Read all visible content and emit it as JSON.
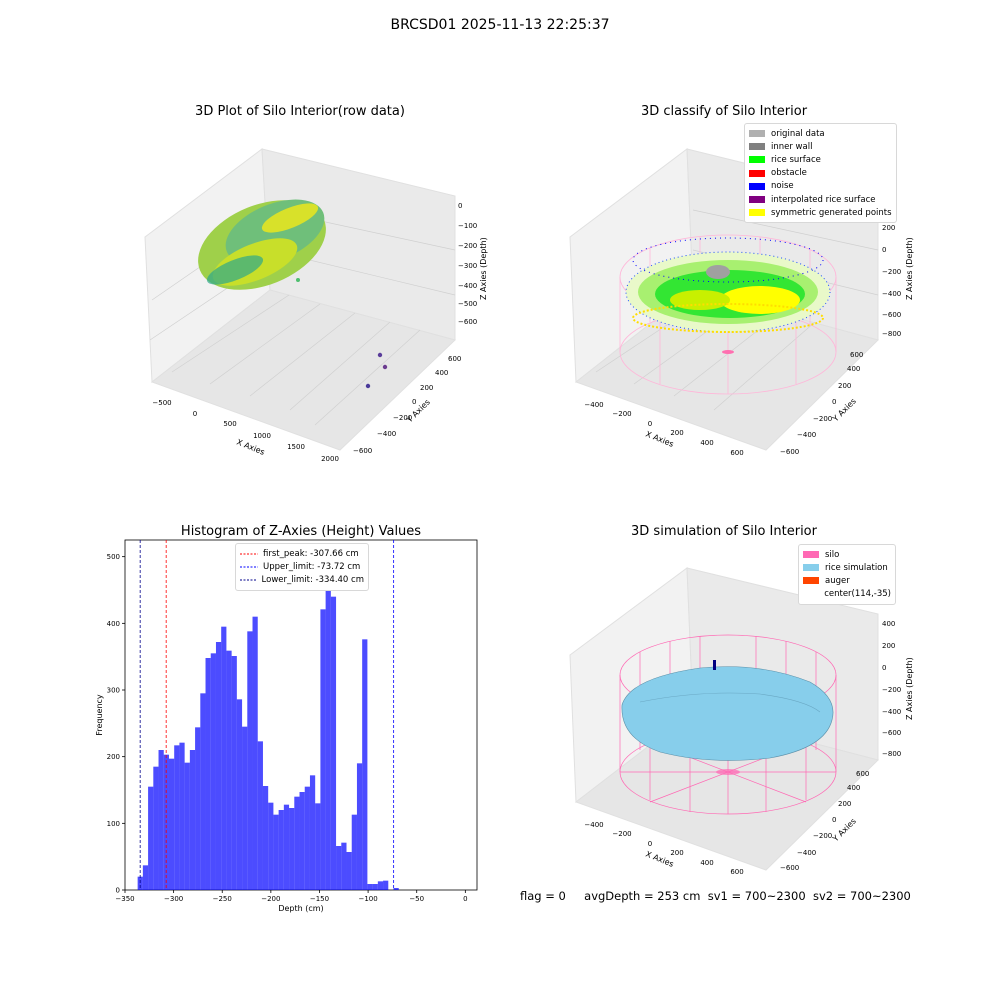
{
  "figure": {
    "suptitle": "BRCSD01 2025-11-13 22:25:37",
    "footer": {
      "flag": "flag = 0",
      "avg_depth": "avgDepth = 253 cm",
      "sv1": "sv1 = 700~2300",
      "sv2": "sv2 = 700~2300"
    }
  },
  "panels": {
    "raw": {
      "title": "3D Plot of Silo Interior(row data)",
      "xlabel": "X Axies",
      "ylabel": "Y Axies",
      "zlabel": "Z Axies (Depth)",
      "xticks": [
        "−500",
        "0",
        "500",
        "1000",
        "1500",
        "2000"
      ],
      "yticks": [
        "−600",
        "−400",
        "−200",
        "0",
        "200",
        "400",
        "600"
      ],
      "zticks": [
        "0",
        "−100",
        "−200",
        "−300",
        "−400",
        "−500",
        "−600"
      ]
    },
    "classify": {
      "title": "3D classify of Silo Interior",
      "xlabel": "X Axies",
      "ylabel": "Y Axies",
      "zlabel": "Z Axies (Depth)",
      "xticks": [
        "−400",
        "−200",
        "0",
        "200",
        "400",
        "600"
      ],
      "yticks": [
        "−600",
        "−400",
        "−200",
        "0",
        "200",
        "400",
        "600"
      ],
      "zticks": [
        "200",
        "0",
        "−200",
        "−400",
        "−600",
        "−800"
      ],
      "legend": [
        {
          "label": "original data",
          "color": "#b0b0b0"
        },
        {
          "label": "inner wall",
          "color": "#808080"
        },
        {
          "label": "rice surface",
          "color": "#00ff00"
        },
        {
          "label": "obstacle",
          "color": "#ff0000"
        },
        {
          "label": "noise",
          "color": "#0000ff"
        },
        {
          "label": "interpolated rice surface",
          "color": "#800080"
        },
        {
          "label": "symmetric generated points",
          "color": "#ffff00"
        }
      ]
    },
    "simulation": {
      "title": "3D simulation of Silo Interior",
      "xlabel": "X Axies",
      "ylabel": "Y Axies",
      "zlabel": "Z Axies (Depth)",
      "xticks": [
        "−400",
        "−200",
        "0",
        "200",
        "400",
        "600"
      ],
      "yticks": [
        "−600",
        "−400",
        "−200",
        "0",
        "200",
        "400",
        "600"
      ],
      "zticks": [
        "400",
        "200",
        "0",
        "−200",
        "−400",
        "−600",
        "−800"
      ],
      "legend": [
        {
          "label": "silo",
          "color": "#ff69b4"
        },
        {
          "label": "rice simulation",
          "color": "#87ceeb"
        },
        {
          "label": "auger",
          "color": "#ff4500"
        },
        {
          "label": "center(114,-35)",
          "color": ""
        }
      ]
    }
  },
  "chart_data": {
    "type": "bar",
    "title": "Histogram of Z-Axies (Height) Values",
    "xlabel": "Depth (cm)",
    "ylabel": "Frequency",
    "xlim": [
      -350,
      12
    ],
    "ylim": [
      0,
      525
    ],
    "xticks": [
      -350,
      -300,
      -250,
      -200,
      -150,
      -100,
      -50,
      0
    ],
    "yticks": [
      0,
      100,
      200,
      300,
      400,
      500
    ],
    "bar_color": "#0000ff",
    "bin_edges_start": -337,
    "bin_width": 5.37,
    "values": [
      20,
      37,
      155,
      185,
      210,
      203,
      197,
      217,
      221,
      191,
      210,
      244,
      295,
      348,
      355,
      372,
      395,
      359,
      351,
      286,
      245,
      388,
      410,
      223,
      156,
      131,
      113,
      120,
      128,
      123,
      140,
      147,
      155,
      172,
      130,
      421,
      498,
      440,
      66,
      71,
      57,
      113,
      190,
      376,
      9,
      9,
      13,
      14,
      0,
      3
    ],
    "vlines": [
      {
        "label": "first_peak: -307.66 cm",
        "x": -307.66,
        "color": "#ff0000"
      },
      {
        "label": "Upper_limit: -73.72 cm",
        "x": -73.72,
        "color": "#0000ff"
      },
      {
        "label": "Lower_limit: -334.40 cm",
        "x": -334.4,
        "color": "#00008b"
      }
    ],
    "legend_position": "top-center"
  }
}
